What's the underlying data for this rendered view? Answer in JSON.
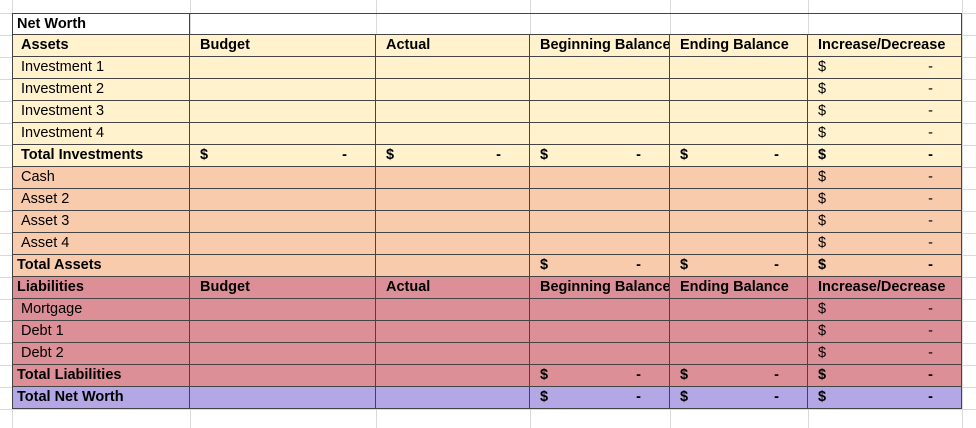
{
  "sheet": {
    "title": "Net Worth",
    "rows": [
      [
        "Assets",
        "Budget",
        "Actual",
        "Beginning Balance",
        "Ending Balance",
        "Increase/Decrease"
      ],
      [
        "Investment 1",
        null,
        null,
        null,
        null,
        {
          "symbol": "$",
          "value": "-"
        }
      ],
      [
        "Investment 2",
        null,
        null,
        null,
        null,
        {
          "symbol": "$",
          "value": "-"
        }
      ],
      [
        "Investment 3",
        null,
        null,
        null,
        null,
        {
          "symbol": "$",
          "value": "-"
        }
      ],
      [
        "Investment 4",
        null,
        null,
        null,
        null,
        {
          "symbol": "$",
          "value": "-"
        }
      ],
      [
        "Total Investments",
        {
          "symbol": "$",
          "value": "-"
        },
        {
          "symbol": "$",
          "value": "-"
        },
        {
          "symbol": "$",
          "value": "-"
        },
        {
          "symbol": "$",
          "value": "-"
        },
        {
          "symbol": "$",
          "value": "-"
        }
      ],
      [
        "Cash",
        null,
        null,
        null,
        null,
        {
          "symbol": "$",
          "value": "-"
        }
      ],
      [
        "Asset 2",
        null,
        null,
        null,
        null,
        {
          "symbol": "$",
          "value": "-"
        }
      ],
      [
        "Asset 3",
        null,
        null,
        null,
        null,
        {
          "symbol": "$",
          "value": "-"
        }
      ],
      [
        "Asset 4",
        null,
        null,
        null,
        null,
        {
          "symbol": "$",
          "value": "-"
        }
      ],
      [
        "Total Assets",
        null,
        null,
        {
          "symbol": "$",
          "value": "-"
        },
        {
          "symbol": "$",
          "value": "-"
        },
        {
          "symbol": "$",
          "value": "-"
        }
      ],
      [
        "Liabilities",
        "Budget",
        "Actual",
        "Beginning Balance",
        "Ending Balance",
        "Increase/Decrease"
      ],
      [
        "Mortgage",
        null,
        null,
        null,
        null,
        {
          "symbol": "$",
          "value": "-"
        }
      ],
      [
        "Debt 1",
        null,
        null,
        null,
        null,
        {
          "symbol": "$",
          "value": "-"
        }
      ],
      [
        "Debt 2",
        null,
        null,
        null,
        null,
        {
          "symbol": "$",
          "value": "-"
        }
      ],
      [
        "Total Liabilities",
        null,
        null,
        {
          "symbol": "$",
          "value": "-"
        },
        {
          "symbol": "$",
          "value": "-"
        },
        {
          "symbol": "$",
          "value": "-"
        }
      ],
      [
        "Total Net Worth",
        null,
        null,
        {
          "symbol": "$",
          "value": "-"
        },
        {
          "symbol": "$",
          "value": "-"
        },
        {
          "symbol": "$",
          "value": "-"
        }
      ]
    ]
  }
}
